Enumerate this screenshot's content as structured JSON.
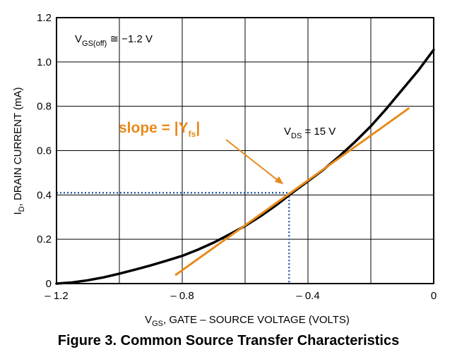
{
  "chart_data": {
    "type": "line",
    "caption": "Figure 3. Common Source Transfer Characteristics",
    "xlabel": {
      "sym": "V",
      "sub": "GS",
      "text": ", GATE – SOURCE VOLTAGE (VOLTS)"
    },
    "ylabel": {
      "sym": "I",
      "sub": "D",
      "text": ", DRAIN CURRENT (mA)"
    },
    "xlim": [
      -1.2,
      0
    ],
    "ylim": [
      0,
      1.2
    ],
    "xticks": [
      -1.2,
      -1.0,
      -0.8,
      -0.6,
      -0.4,
      -0.2,
      0
    ],
    "xtick_labels": [
      "– 1.2",
      "",
      "– 0.8",
      "",
      "– 0.4",
      "",
      "0"
    ],
    "yticks": [
      0,
      0.2,
      0.4,
      0.6,
      0.8,
      1.0,
      1.2
    ],
    "ytick_labels": [
      "0",
      "0.2",
      "0.4",
      "0.6",
      "0.8",
      "1.0",
      "1.2"
    ],
    "grid": true,
    "series": [
      {
        "color": "#000000",
        "x": [
          -1.2,
          -1.15,
          -1.1,
          -1.05,
          -1.0,
          -0.95,
          -0.9,
          -0.85,
          -0.8,
          -0.75,
          -0.7,
          -0.65,
          -0.6,
          -0.55,
          -0.5,
          -0.45,
          -0.4,
          -0.35,
          -0.3,
          -0.25,
          -0.2,
          -0.15,
          -0.1,
          -0.05,
          0
        ],
        "y": [
          0,
          0.005,
          0.015,
          0.028,
          0.045,
          0.063,
          0.082,
          0.103,
          0.125,
          0.153,
          0.185,
          0.222,
          0.26,
          0.305,
          0.355,
          0.41,
          0.462,
          0.515,
          0.575,
          0.64,
          0.71,
          0.79,
          0.875,
          0.96,
          1.055
        ]
      },
      {
        "color": "#e88a1a",
        "x": [
          -0.82,
          -0.08
        ],
        "y": [
          0.04,
          0.79
        ]
      }
    ],
    "reference_point": {
      "x": -0.46,
      "y": 0.41,
      "color": "#2b5fa8"
    },
    "annotations": {
      "vgs_off": {
        "sym": "V",
        "sub": "GS(off)",
        "text": " ≅ −1.2 V"
      },
      "vds": {
        "sym": "V",
        "sub": "DS",
        "text": " = 15 V"
      },
      "slope": {
        "text": "slope = |Y",
        "sub": "fs",
        "end": "|"
      }
    }
  }
}
